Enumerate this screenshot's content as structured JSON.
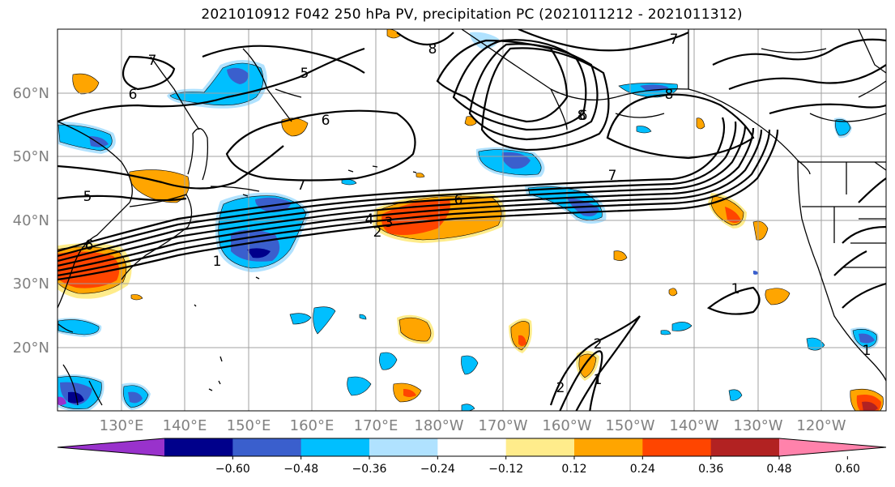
{
  "title": "2021010912 F042 250 hPa PV, precipitation PC (2021011212 - 2021011312)",
  "map": {
    "lat_ticks": [
      "60°N",
      "50°N",
      "40°N",
      "30°N",
      "20°N"
    ],
    "lon_ticks": [
      "130°E",
      "140°E",
      "150°E",
      "160°E",
      "170°E",
      "180°W",
      "170°W",
      "160°W",
      "150°W",
      "140°W",
      "130°W",
      "120°W"
    ],
    "contour_labels": [
      "7",
      "7",
      "7",
      "7",
      "6",
      "6",
      "6",
      "6",
      "5",
      "5",
      "8",
      "8",
      "8",
      "4",
      "3",
      "2",
      "1",
      "1",
      "6",
      "2",
      "1",
      "1",
      "2"
    ],
    "colors": {
      "neg_060": "#9932cc",
      "neg_048": "#00008b",
      "neg_036": "#3a5fcd",
      "neg_024": "#00bfff",
      "neg_012": "#b0e2ff",
      "zero": "#ffffff",
      "pos_012": "#ffec8b",
      "pos_024": "#ffa500",
      "pos_036": "#ff4500",
      "pos_048": "#b22222",
      "pos_060": "#ff82ab"
    }
  },
  "colorbar": {
    "labels": [
      "−0.60",
      "−0.48",
      "−0.36",
      "−0.24",
      "−0.12",
      "0.12",
      "0.24",
      "0.36",
      "0.48",
      "0.60"
    ]
  }
}
